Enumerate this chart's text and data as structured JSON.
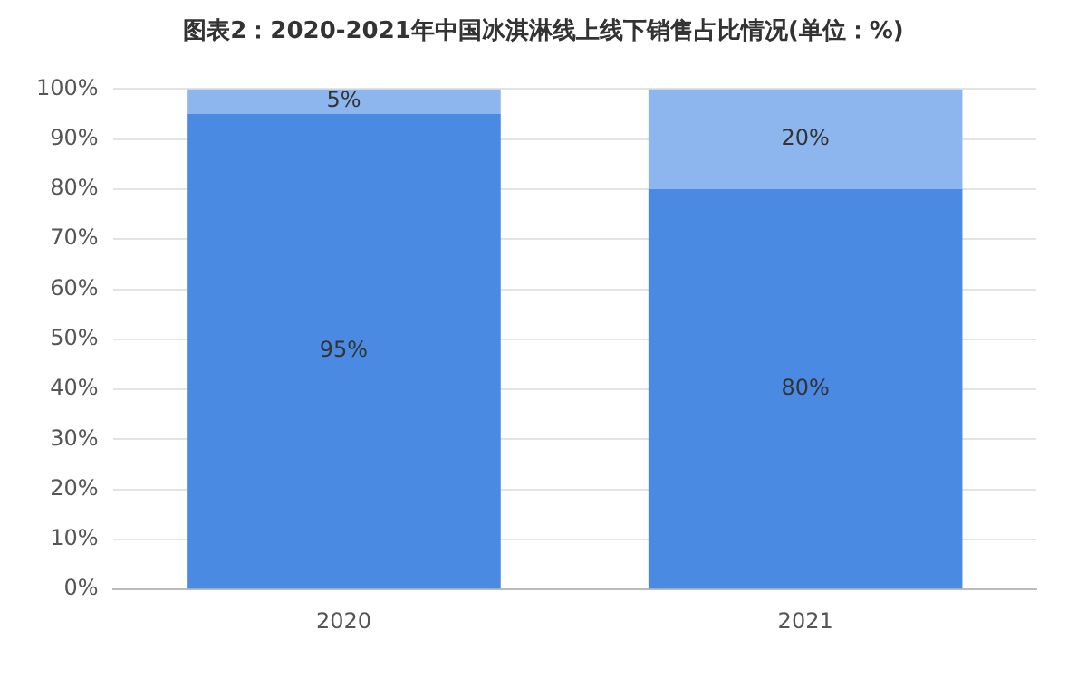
{
  "chart_data": {
    "type": "bar",
    "title": "图表2：2020-2021年中国冰淇淋线上线下销售占比情况(单位：%)",
    "categories": [
      "2020",
      "2021"
    ],
    "stacked": true,
    "grid": "y",
    "ylim": [
      0,
      100
    ],
    "yticks": [
      {
        "value": 0,
        "label": "0%"
      },
      {
        "value": 10,
        "label": "10%"
      },
      {
        "value": 20,
        "label": "20%"
      },
      {
        "value": 30,
        "label": "30%"
      },
      {
        "value": 40,
        "label": "40%"
      },
      {
        "value": 50,
        "label": "50%"
      },
      {
        "value": 60,
        "label": "60%"
      },
      {
        "value": 70,
        "label": "70%"
      },
      {
        "value": 80,
        "label": "80%"
      },
      {
        "value": 90,
        "label": "90%"
      },
      {
        "value": 100,
        "label": "100%"
      }
    ],
    "series": [
      {
        "color": "#4a8ae2",
        "values": [
          95,
          80
        ],
        "value_labels": [
          "95%",
          "80%"
        ]
      },
      {
        "color": "#8db6ef",
        "values": [
          5,
          20
        ],
        "value_labels": [
          "5%",
          "20%"
        ]
      }
    ]
  }
}
